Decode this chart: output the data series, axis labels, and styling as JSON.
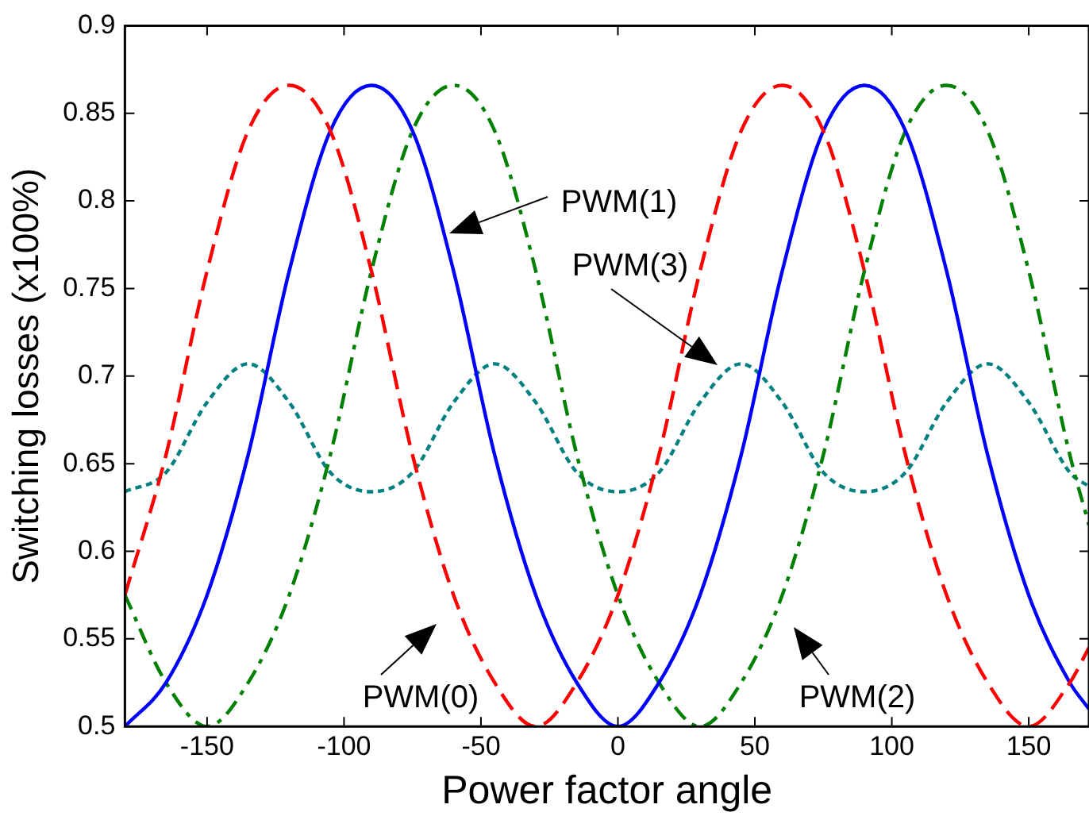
{
  "chart_data": {
    "type": "line",
    "xlabel": "Power factor angle",
    "ylabel": "Switching losses (x100%)",
    "x": [
      -180,
      -165,
      -150,
      -135,
      -120,
      -105,
      -90,
      -75,
      -60,
      -45,
      -30,
      -15,
      0,
      15,
      30,
      45,
      60,
      75,
      90,
      105,
      120,
      135,
      150,
      165,
      172
    ],
    "xlim": [
      -180,
      172
    ],
    "xticks": [
      -150,
      -100,
      -50,
      0,
      50,
      100,
      150
    ],
    "ylim": [
      0.5,
      0.9
    ],
    "yticks": [
      0.5,
      0.55,
      0.6,
      0.65,
      0.7,
      0.75,
      0.8,
      0.85,
      0.9
    ],
    "grid": false,
    "legend": false,
    "marker": "none",
    "series": [
      {
        "color": "#ff0000",
        "line_style": "dashed",
        "values": [
          0.575,
          0.655,
          0.76,
          0.84,
          0.866,
          0.84,
          0.76,
          0.655,
          0.575,
          0.525,
          0.5,
          0.525,
          0.575,
          0.655,
          0.76,
          0.84,
          0.866,
          0.84,
          0.76,
          0.655,
          0.575,
          0.525,
          0.5,
          0.525,
          0.545
        ]
      },
      {
        "color": "#0000ff",
        "line_style": "solid",
        "values": [
          0.5,
          0.525,
          0.575,
          0.655,
          0.76,
          0.84,
          0.866,
          0.84,
          0.76,
          0.655,
          0.575,
          0.525,
          0.5,
          0.525,
          0.575,
          0.655,
          0.76,
          0.84,
          0.866,
          0.84,
          0.76,
          0.655,
          0.575,
          0.525,
          0.51
        ]
      },
      {
        "color": "#008000",
        "line_style": "dashdot",
        "values": [
          0.575,
          0.525,
          0.5,
          0.525,
          0.575,
          0.655,
          0.76,
          0.84,
          0.866,
          0.84,
          0.76,
          0.655,
          0.575,
          0.525,
          0.5,
          0.525,
          0.575,
          0.655,
          0.76,
          0.84,
          0.866,
          0.84,
          0.76,
          0.655,
          0.615
        ]
      },
      {
        "color": "#008080",
        "line_style": "dotted",
        "values": [
          0.634,
          0.645,
          0.685,
          0.707,
          0.685,
          0.645,
          0.634,
          0.645,
          0.685,
          0.707,
          0.685,
          0.645,
          0.634,
          0.645,
          0.685,
          0.707,
          0.685,
          0.645,
          0.634,
          0.645,
          0.685,
          0.707,
          0.685,
          0.645,
          0.637
        ]
      }
    ],
    "annotations": [
      "PWM(0)",
      "PWM(1)",
      "PWM(3)",
      "PWM(2)"
    ]
  }
}
